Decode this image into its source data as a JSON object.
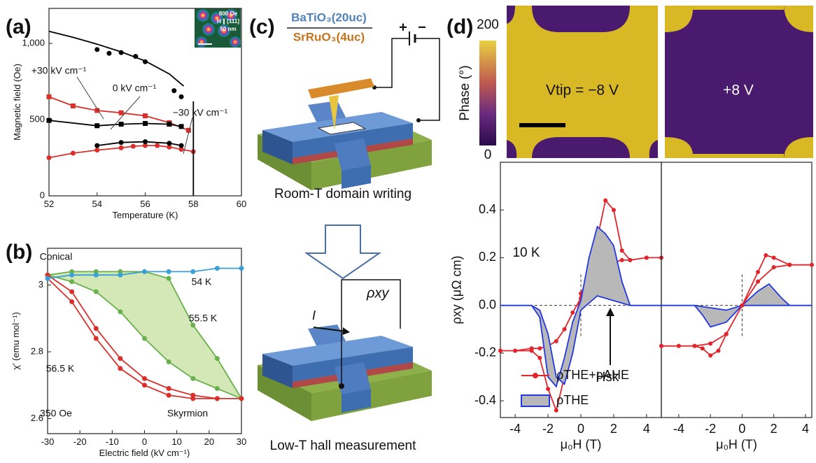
{
  "panel_labels": [
    "(a)",
    "(b)",
    "(c)",
    "(d)"
  ],
  "chart_data": [
    {
      "type": "line",
      "x_label": "Temperature (K)",
      "y_label": "Magnetic field (Oe)",
      "xlim": [
        52,
        60
      ],
      "ylim": [
        0,
        1230
      ],
      "xticks": [
        52,
        54,
        56,
        58,
        60
      ],
      "yticks": [
        0,
        500,
        {
          "value": 1000,
          "label": "1,000"
        }
      ],
      "annotations": [
        "+30 kV cm⁻¹",
        "0 kV cm⁻¹",
        "−30 kV cm⁻¹"
      ],
      "inset": [
        "800 Oe",
        "H ∥ [111]",
        "50 nm"
      ],
      "series": [
        {
          "color": "#000000",
          "style": "line",
          "x": [
            52,
            53,
            54,
            55,
            56,
            57,
            57.6
          ],
          "values": [
            1080,
            1040,
            995,
            945,
            885,
            800,
            720
          ]
        },
        {
          "color": "#000000",
          "style": "markers",
          "marker": "circle",
          "x": [
            54,
            54.5,
            55,
            55.6,
            56,
            57.2,
            57.5
          ],
          "values": [
            960,
            935,
            940,
            915,
            880,
            690,
            650
          ]
        },
        {
          "color": "#d9302c",
          "style": "line-markers",
          "marker": "square",
          "x": [
            52,
            53,
            54,
            55,
            56,
            57,
            57.8
          ],
          "values": [
            650,
            590,
            560,
            545,
            525,
            480,
            430
          ]
        },
        {
          "color": "#d9302c",
          "style": "line-markers",
          "marker": "circle",
          "x": [
            52,
            53,
            54,
            55,
            55.5,
            56,
            56.5,
            57,
            57.5,
            58
          ],
          "values": [
            250,
            280,
            300,
            315,
            325,
            330,
            330,
            320,
            305,
            290
          ]
        },
        {
          "color": "#000000",
          "style": "line-markers",
          "marker": "square",
          "x": [
            52,
            54,
            55,
            56,
            57,
            57.5
          ],
          "values": [
            495,
            460,
            470,
            475,
            470,
            455
          ]
        },
        {
          "color": "#000000",
          "style": "line-markers",
          "marker": "circle",
          "x": [
            54,
            55,
            56,
            57,
            57.5
          ],
          "values": [
            330,
            350,
            355,
            345,
            330
          ]
        },
        {
          "color": "#000000",
          "style": "line",
          "x": [
            58,
            58
          ],
          "values": [
            0,
            620
          ]
        }
      ]
    },
    {
      "type": "line",
      "x_label": "Electric field (kV cm⁻¹)",
      "y_label": "χ′ (emu mol⁻¹)",
      "xlim": [
        -30,
        30
      ],
      "ylim": [
        2.555,
        3.11
      ],
      "xticks": [
        -30,
        -20,
        -10,
        0,
        10,
        20,
        30
      ],
      "yticks": [
        2.6,
        2.8,
        3
      ],
      "annotations": [
        "Conical",
        "54 K",
        "55.5 K",
        "56.5 K",
        "350 Oe",
        "Skyrmion"
      ],
      "series": [
        {
          "color": "#6ab04c",
          "fill": "#d3e8b6",
          "style": "line-markers",
          "marker": "circle",
          "x": [
            -30,
            -22.5,
            -15,
            -7.5,
            0,
            7.5,
            15,
            22.5,
            30,
            22.5,
            15,
            7.5,
            0,
            -7.5,
            -15,
            -22.5,
            -30
          ],
          "values": [
            3.03,
            3.04,
            3.04,
            3.04,
            3.04,
            3.02,
            2.88,
            2.78,
            2.66,
            2.69,
            2.72,
            2.77,
            2.84,
            2.92,
            2.98,
            3.01,
            3.03
          ]
        },
        {
          "color": "#d9302c",
          "style": "line-markers",
          "marker": "circle",
          "x": [
            -30,
            -22.5,
            -15,
            -7.5,
            0,
            7.5,
            15,
            22.5,
            30,
            22.5,
            15,
            7.5,
            0,
            -7.5,
            -15,
            -22.5,
            -30
          ],
          "values": [
            3.03,
            2.98,
            2.87,
            2.78,
            2.72,
            2.69,
            2.67,
            2.66,
            2.66,
            2.66,
            2.66,
            2.67,
            2.7,
            2.75,
            2.84,
            2.95,
            3.02
          ]
        },
        {
          "color": "#3aa0d8",
          "style": "line-markers",
          "marker": "circle",
          "x": [
            -30,
            -22.5,
            -15,
            -7.5,
            0,
            7.5,
            15,
            22.5,
            30
          ],
          "values": [
            3.02,
            3.03,
            3.03,
            3.03,
            3.04,
            3.04,
            3.04,
            3.05,
            3.05
          ]
        }
      ]
    },
    {
      "type": "line",
      "x_label": "μ₀H (T)",
      "y_label": "ρxy (μΩ cm)",
      "zero_lines": true,
      "legend": "lower right",
      "xlim": [
        -4.9,
        4.9
      ],
      "ylim": [
        -0.47,
        0.6
      ],
      "xticks": [
        -4,
        -2,
        0,
        2,
        4
      ],
      "yticks": [
        -0.4,
        -0.2,
        {
          "value": 0,
          "label": "0.0"
        },
        0.2,
        0.4
      ],
      "annotations": [
        "10 K",
        "Hsk"
      ],
      "series": [
        {
          "name": "ρTHE+ρAHE",
          "color": "#e3242b",
          "style": "line-markers",
          "marker": "circle",
          "x": [
            -4.9,
            -4,
            -3,
            -2.5,
            -2,
            -1.5,
            -1,
            -0.5,
            0,
            0.5,
            1,
            1.5,
            2,
            2.5,
            3,
            4,
            4.9,
            4,
            3,
            2.5,
            2,
            1.5,
            1,
            0.5,
            0,
            -0.5,
            -1,
            -1.5,
            -2,
            -2.5,
            -3,
            -4,
            -4.9
          ],
          "values": [
            -0.19,
            -0.19,
            -0.18,
            -0.18,
            -0.17,
            -0.15,
            -0.1,
            -0.03,
            0.03,
            0.12,
            0.28,
            0.44,
            0.4,
            0.23,
            0.19,
            0.2,
            0.2,
            0.2,
            0.19,
            0.19,
            0.18,
            0.17,
            0.15,
            0.12,
            0.05,
            -0.12,
            -0.3,
            -0.44,
            -0.35,
            -0.22,
            -0.19,
            -0.19,
            -0.19
          ]
        },
        {
          "name": "ρTHE",
          "color": "#2238e0",
          "fill": "#b8b8b8",
          "style": "line",
          "x": [
            -4.9,
            -3,
            -2.5,
            -2,
            -1.5,
            -1,
            -0.5,
            0,
            0.5,
            1,
            1.5,
            2,
            2.5,
            3,
            4.9,
            3,
            2,
            1,
            0,
            -0.5,
            -1,
            -1.5,
            -2,
            -2.5,
            -3,
            -4.9
          ],
          "values": [
            0,
            0,
            -0.05,
            -0.3,
            -0.34,
            -0.22,
            -0.07,
            0.02,
            0.2,
            0.33,
            0.3,
            0.25,
            0.1,
            0,
            0,
            0,
            0.02,
            0.04,
            -0.02,
            -0.2,
            -0.33,
            -0.3,
            -0.12,
            -0.02,
            0,
            0
          ]
        }
      ]
    },
    {
      "type": "line",
      "x_label": "μ₀H (T)",
      "zero_lines": true,
      "xlim": [
        -5.1,
        4.4
      ],
      "ylim": [
        -0.47,
        0.6
      ],
      "xticks": [
        -4,
        -2,
        0,
        2,
        4
      ],
      "series": [
        {
          "color": "#2238e0",
          "fill": "#b8b8b8",
          "style": "line",
          "x": [
            -5.1,
            -3,
            -2.5,
            -2,
            -1,
            0,
            1,
            1.7,
            2.5,
            3,
            4.4,
            3,
            2,
            1,
            0,
            -1,
            -2,
            -3,
            -5.1
          ],
          "values": [
            0,
            0,
            -0.04,
            -0.09,
            -0.07,
            0,
            0.06,
            0.09,
            0.03,
            0,
            0,
            0,
            0,
            0,
            0,
            -0.02,
            -0.01,
            0,
            0
          ]
        },
        {
          "color": "#e3242b",
          "style": "line-markers",
          "marker": "circle",
          "x": [
            -5.1,
            -4,
            -3,
            -2.5,
            -2,
            -1.5,
            -1,
            0,
            1,
            1.5,
            2,
            3,
            4.4,
            3,
            2,
            1,
            0,
            -1,
            -2,
            -3,
            -4,
            -5.1
          ],
          "values": [
            -0.17,
            -0.17,
            -0.17,
            -0.18,
            -0.21,
            -0.19,
            -0.12,
            0,
            0.14,
            0.21,
            0.2,
            0.17,
            0.17,
            0.17,
            0.16,
            0.1,
            0,
            -0.12,
            -0.16,
            -0.17,
            -0.17,
            -0.17
          ]
        }
      ]
    }
  ],
  "diagram": {
    "top_layer": "BaTiO₃(20uc)",
    "bottom_layer": "SrRuO₃(4uc)",
    "plus": "+",
    "minus": "−",
    "step1": "Room-T domain writing",
    "voltage": "ρxy",
    "current": "I",
    "step2": "Low-T hall measurement"
  },
  "afm": {
    "colorbar_label": "Phase (°)",
    "colorbar_ticks": [
      0,
      200
    ],
    "left_label": "Vtip = −8 V",
    "right_label": "+8 V"
  }
}
